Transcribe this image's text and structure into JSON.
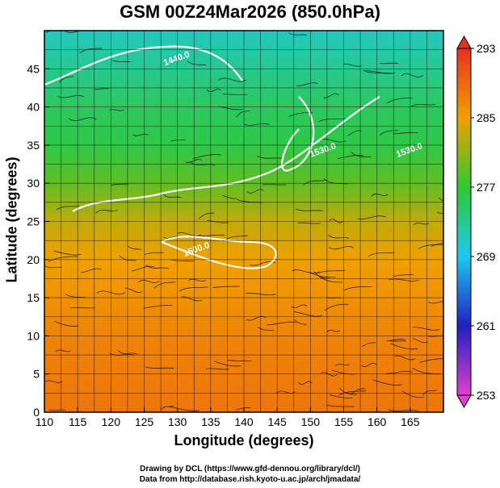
{
  "chart_data": {
    "type": "heatmap",
    "title": "GSM 00Z24Mar2026 (850.0hPa)",
    "xlabel": "Longitude (degrees)",
    "ylabel": "Latitude  (degrees)",
    "xlim": [
      110,
      170
    ],
    "ylim": [
      0,
      50
    ],
    "x_ticks": [
      110,
      115,
      120,
      125,
      130,
      135,
      140,
      145,
      150,
      155,
      160,
      165
    ],
    "y_ticks": [
      0,
      5,
      10,
      15,
      20,
      25,
      30,
      35,
      40,
      45
    ],
    "grid": true,
    "colorbar": {
      "range": [
        253,
        293
      ],
      "ticks": [
        253,
        261,
        269,
        277,
        285,
        293
      ],
      "colors": [
        "#e040d0",
        "#2020c0",
        "#1ec8f0",
        "#30c830",
        "#f0a000",
        "#e83020"
      ]
    },
    "temperature_by_latitude": [
      {
        "lat": 0,
        "value": 288
      },
      {
        "lat": 10,
        "value": 287
      },
      {
        "lat": 20,
        "value": 285
      },
      {
        "lat": 25,
        "value": 283
      },
      {
        "lat": 30,
        "value": 279
      },
      {
        "lat": 35,
        "value": 276
      },
      {
        "lat": 40,
        "value": 275
      },
      {
        "lat": 45,
        "value": 273
      },
      {
        "lat": 50,
        "value": 271
      }
    ],
    "contour_labels": [
      {
        "text": "1440.0",
        "lon": 130,
        "lat": 46
      },
      {
        "text": "1500.0",
        "lon": 133,
        "lat": 21
      },
      {
        "text": "1530.0",
        "lon": 152,
        "lat": 34
      },
      {
        "text": "1530.0",
        "lon": 165,
        "lat": 34
      }
    ]
  },
  "credits": {
    "line1": "Drawing by DCL (https://www.gfd-dennou.org/library/dcl/)",
    "line2": "Data from http://database.rish.kyoto-u.ac.jp/arch/jmadata/"
  }
}
